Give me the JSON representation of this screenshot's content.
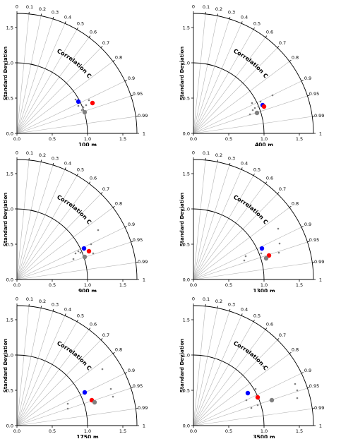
{
  "figure": {
    "ylabel": "Standard Deviation",
    "arc_label": "Correlation Coefficient",
    "std_ticks": [
      "0.0",
      "0.5",
      "1.0",
      "1.5"
    ],
    "std_tick_values": [
      0,
      0.5,
      1.0,
      1.5
    ],
    "corr_ticks": [
      "0",
      "0.1",
      "0.2",
      "0.3",
      "0.4",
      "0.5",
      "0.6",
      "0.7",
      "0.8",
      "0.9",
      "0.95",
      "0.99",
      "1"
    ],
    "corr_tick_values": [
      0,
      0.1,
      0.2,
      0.3,
      0.4,
      0.5,
      0.6,
      0.7,
      0.8,
      0.9,
      0.95,
      0.99,
      1.0
    ],
    "colors": {
      "blue": "#0000ff",
      "red": "#ff0000",
      "gray": "#808080",
      "line": "#b4b4b4"
    }
  },
  "chart_data": [
    {
      "type": "scatter",
      "chart_kind": "taylor-diagram",
      "title": "100 m",
      "xlim": [
        0,
        1.7
      ],
      "ylim": [
        0,
        1.7
      ],
      "reference": {
        "std": 1.0,
        "corr": 1.0
      },
      "series": [
        {
          "name": "",
          "color": "#0000ff",
          "marker": "large",
          "points": [
            {
              "x": 0.87,
              "y": 0.45
            }
          ]
        },
        {
          "name": "",
          "color": "#ff0000",
          "marker": "large",
          "points": [
            {
              "x": 1.07,
              "y": 0.43
            }
          ]
        },
        {
          "name": "",
          "color": "#808080",
          "marker": "large",
          "points": [
            {
              "x": 0.96,
              "y": 0.3
            }
          ]
        },
        {
          "name": "",
          "color": "#808080",
          "marker": "small",
          "points": [
            {
              "x": 0.83,
              "y": 0.48
            },
            {
              "x": 0.87,
              "y": 0.39
            },
            {
              "x": 0.92,
              "y": 0.33
            },
            {
              "x": 0.98,
              "y": 0.4
            },
            {
              "x": 1.02,
              "y": 0.47
            },
            {
              "x": 0.94,
              "y": 0.37
            }
          ]
        }
      ]
    },
    {
      "type": "scatter",
      "chart_kind": "taylor-diagram",
      "title": "400 m",
      "xlim": [
        0,
        1.7
      ],
      "ylim": [
        0,
        1.7
      ],
      "reference": {
        "std": 1.0,
        "corr": 1.0
      },
      "series": [
        {
          "name": "",
          "color": "#0000ff",
          "marker": "large",
          "points": [
            {
              "x": 0.98,
              "y": 0.4
            }
          ]
        },
        {
          "name": "",
          "color": "#ff0000",
          "marker": "large",
          "points": [
            {
              "x": 1.0,
              "y": 0.38
            }
          ]
        },
        {
          "name": "",
          "color": "#808080",
          "marker": "large",
          "points": [
            {
              "x": 0.9,
              "y": 0.29
            }
          ]
        },
        {
          "name": "",
          "color": "#808080",
          "marker": "small",
          "points": [
            {
              "x": 0.83,
              "y": 0.43
            },
            {
              "x": 0.87,
              "y": 0.36
            },
            {
              "x": 0.84,
              "y": 0.33
            },
            {
              "x": 0.92,
              "y": 0.38
            },
            {
              "x": 0.95,
              "y": 0.45
            },
            {
              "x": 1.12,
              "y": 0.54
            },
            {
              "x": 0.8,
              "y": 0.27
            }
          ]
        }
      ]
    },
    {
      "type": "scatter",
      "chart_kind": "taylor-diagram",
      "title": "900 m",
      "xlim": [
        0,
        1.7
      ],
      "ylim": [
        0,
        1.7
      ],
      "reference": {
        "std": 1.0,
        "corr": 1.0
      },
      "series": [
        {
          "name": "",
          "color": "#0000ff",
          "marker": "large",
          "points": [
            {
              "x": 0.95,
              "y": 0.44
            }
          ]
        },
        {
          "name": "",
          "color": "#ff0000",
          "marker": "large",
          "points": [
            {
              "x": 1.02,
              "y": 0.4
            }
          ]
        },
        {
          "name": "",
          "color": "#808080",
          "marker": "large",
          "points": [
            {
              "x": 0.96,
              "y": 0.32
            }
          ]
        },
        {
          "name": "",
          "color": "#808080",
          "marker": "small",
          "points": [
            {
              "x": 0.83,
              "y": 0.37
            },
            {
              "x": 0.87,
              "y": 0.4
            },
            {
              "x": 0.9,
              "y": 0.38
            },
            {
              "x": 1.05,
              "y": 0.5
            },
            {
              "x": 1.08,
              "y": 0.37
            },
            {
              "x": 1.15,
              "y": 0.7
            },
            {
              "x": 0.8,
              "y": 0.29
            }
          ]
        }
      ]
    },
    {
      "type": "scatter",
      "chart_kind": "taylor-diagram",
      "title": "1300 m",
      "xlim": [
        0,
        1.7
      ],
      "ylim": [
        0,
        1.7
      ],
      "reference": {
        "std": 1.0,
        "corr": 1.0
      },
      "series": [
        {
          "name": "",
          "color": "#0000ff",
          "marker": "large",
          "points": [
            {
              "x": 0.97,
              "y": 0.44
            }
          ]
        },
        {
          "name": "",
          "color": "#ff0000",
          "marker": "large",
          "points": [
            {
              "x": 1.07,
              "y": 0.34
            }
          ]
        },
        {
          "name": "",
          "color": "#808080",
          "marker": "large",
          "points": [
            {
              "x": 1.03,
              "y": 0.3
            }
          ]
        },
        {
          "name": "",
          "color": "#808080",
          "marker": "small",
          "points": [
            {
              "x": 1.2,
              "y": 0.72
            },
            {
              "x": 1.22,
              "y": 0.51
            },
            {
              "x": 1.21,
              "y": 0.38
            },
            {
              "x": 0.96,
              "y": 0.37
            },
            {
              "x": 0.74,
              "y": 0.33
            },
            {
              "x": 0.72,
              "y": 0.27
            }
          ]
        }
      ]
    },
    {
      "type": "scatter",
      "chart_kind": "taylor-diagram",
      "title": "1750 m",
      "xlim": [
        0,
        1.7
      ],
      "ylim": [
        0,
        1.7
      ],
      "reference": {
        "std": 1.0,
        "corr": 1.0
      },
      "series": [
        {
          "name": "",
          "color": "#0000ff",
          "marker": "large",
          "points": [
            {
              "x": 0.96,
              "y": 0.47
            }
          ]
        },
        {
          "name": "",
          "color": "#ff0000",
          "marker": "large",
          "points": [
            {
              "x": 1.06,
              "y": 0.36
            }
          ]
        },
        {
          "name": "",
          "color": "#808080",
          "marker": "large",
          "points": [
            {
              "x": 1.1,
              "y": 0.33
            }
          ]
        },
        {
          "name": "",
          "color": "#808080",
          "marker": "small",
          "points": [
            {
              "x": 1.21,
              "y": 0.8
            },
            {
              "x": 1.33,
              "y": 0.52
            },
            {
              "x": 1.36,
              "y": 0.41
            },
            {
              "x": 0.72,
              "y": 0.31
            },
            {
              "x": 0.72,
              "y": 0.24
            }
          ]
        }
      ]
    },
    {
      "type": "scatter",
      "chart_kind": "taylor-diagram",
      "title": "3500 m",
      "xlim": [
        0,
        1.7
      ],
      "ylim": [
        0,
        1.7
      ],
      "reference": {
        "std": 1.0,
        "corr": 1.0
      },
      "series": [
        {
          "name": "",
          "color": "#0000ff",
          "marker": "large",
          "points": [
            {
              "x": 0.77,
              "y": 0.46
            }
          ]
        },
        {
          "name": "",
          "color": "#ff0000",
          "marker": "large",
          "points": [
            {
              "x": 0.91,
              "y": 0.4
            }
          ]
        },
        {
          "name": "",
          "color": "#808080",
          "marker": "large",
          "points": [
            {
              "x": 1.11,
              "y": 0.36
            }
          ]
        },
        {
          "name": "",
          "color": "#808080",
          "marker": "small",
          "points": [
            {
              "x": 0.75,
              "y": 0.36
            },
            {
              "x": 0.82,
              "y": 0.25
            },
            {
              "x": 0.88,
              "y": 0.52
            },
            {
              "x": 0.91,
              "y": 0.29
            },
            {
              "x": 0.99,
              "y": 0.84
            },
            {
              "x": 1.44,
              "y": 0.59
            },
            {
              "x": 1.47,
              "y": 0.39
            },
            {
              "x": 1.47,
              "y": 0.5
            }
          ]
        }
      ]
    }
  ]
}
